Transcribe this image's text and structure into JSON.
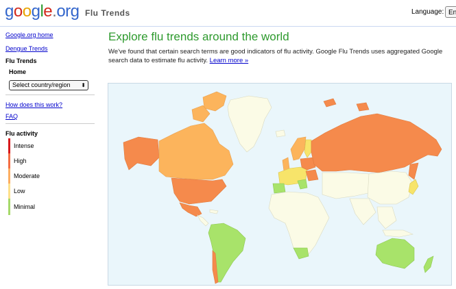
{
  "header": {
    "logo": {
      "g1": "g",
      "o1": "o",
      "o2": "o",
      "g2": "g",
      "l": "l",
      "e": "e",
      "dot": ".",
      "org": "org"
    },
    "product": "Flu Trends",
    "language_label": "Language:",
    "language_value": "En"
  },
  "sidebar": {
    "links": [
      {
        "label": "Google.org home"
      },
      {
        "label": "Dengue Trends"
      }
    ],
    "section": "Flu Trends",
    "home": "Home",
    "country_select": "Select country/region",
    "how_link": "How does this work?",
    "faq_link": "FAQ",
    "legend_title": "Flu activity",
    "legend": [
      {
        "label": "Intense",
        "color": "#d7191c"
      },
      {
        "label": "High",
        "color": "#f46d43"
      },
      {
        "label": "Moderate",
        "color": "#fdae61"
      },
      {
        "label": "Low",
        "color": "#fee08b"
      },
      {
        "label": "Minimal",
        "color": "#a6d96a"
      }
    ]
  },
  "main": {
    "title": "Explore flu trends around the world",
    "description": "We've found that certain search terms are good indicators of flu activity. Google Flu Trends uses aggregated Google search data to estimate flu activity. ",
    "learn_more": "Learn more »"
  },
  "map": {
    "colors": {
      "ocean": "#eaf6fb",
      "nodata": "#fbfbe6",
      "high": "#f58a4c",
      "moderate": "#fcb45c",
      "low": "#f7e46a",
      "minimal": "#a8e36a"
    }
  }
}
